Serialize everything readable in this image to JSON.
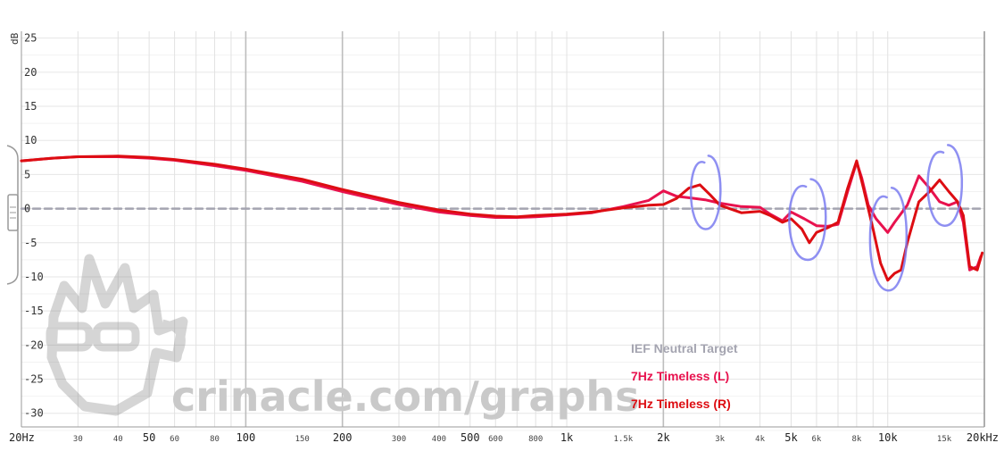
{
  "chart_data": {
    "type": "line",
    "x_scale": "log",
    "xlim": [
      20,
      20000
    ],
    "ylim": [
      -32,
      26
    ],
    "ylabel": "dB",
    "grid": true,
    "legend_position": "bottom-right",
    "y_ticks": [
      25,
      20,
      15,
      10,
      5,
      0,
      -5,
      -10,
      -15,
      -20,
      -25,
      -30
    ],
    "y_tick_labels": [
      "25",
      "20",
      "15",
      "10",
      "5",
      "0",
      "-5",
      "-10",
      "-15",
      "-20",
      "-25",
      "-30"
    ],
    "x_major_ticks": [
      {
        "value": 20,
        "label": "20Hz"
      },
      {
        "value": 50,
        "label": "50"
      },
      {
        "value": 100,
        "label": "100"
      },
      {
        "value": 200,
        "label": "200"
      },
      {
        "value": 500,
        "label": "500"
      },
      {
        "value": 1000,
        "label": "1k"
      },
      {
        "value": 2000,
        "label": "2k"
      },
      {
        "value": 5000,
        "label": "5k"
      },
      {
        "value": 10000,
        "label": "10k"
      },
      {
        "value": 20000,
        "label": "20kHz"
      }
    ],
    "x_minor_ticks": [
      {
        "value": 30,
        "label": "30"
      },
      {
        "value": 40,
        "label": "40"
      },
      {
        "value": 60,
        "label": "60"
      },
      {
        "value": 80,
        "label": "80"
      },
      {
        "value": 150,
        "label": "150"
      },
      {
        "value": 300,
        "label": "300"
      },
      {
        "value": 400,
        "label": "400"
      },
      {
        "value": 600,
        "label": "600"
      },
      {
        "value": 800,
        "label": "800"
      },
      {
        "value": 1500,
        "label": "1.5k"
      },
      {
        "value": 3000,
        "label": "3k"
      },
      {
        "value": 4000,
        "label": "4k"
      },
      {
        "value": 6000,
        "label": "6k"
      },
      {
        "value": 8000,
        "label": "8k"
      },
      {
        "value": 15000,
        "label": "15k"
      }
    ],
    "x_gridlines": [
      20,
      30,
      40,
      50,
      60,
      70,
      80,
      90,
      100,
      200,
      300,
      400,
      500,
      600,
      700,
      800,
      900,
      1000,
      2000,
      3000,
      4000,
      5000,
      6000,
      7000,
      8000,
      9000,
      10000,
      20000
    ],
    "x_heavy_gridlines": [
      100,
      200,
      2000
    ],
    "series": [
      {
        "name": "IEF Neutral Target",
        "color": "#a4a4b0",
        "style": "dashed",
        "points": [
          [
            20,
            0
          ],
          [
            20000,
            0
          ]
        ]
      },
      {
        "name": "7Hz Timeless (L)",
        "color": "#e8124e",
        "style": "solid",
        "points": [
          [
            20,
            7.0
          ],
          [
            25,
            7.4
          ],
          [
            30,
            7.6
          ],
          [
            40,
            7.6
          ],
          [
            50,
            7.4
          ],
          [
            60,
            7.1
          ],
          [
            80,
            6.3
          ],
          [
            100,
            5.6
          ],
          [
            150,
            4.0
          ],
          [
            200,
            2.5
          ],
          [
            300,
            0.6
          ],
          [
            400,
            -0.5
          ],
          [
            500,
            -1.0
          ],
          [
            600,
            -1.3
          ],
          [
            700,
            -1.3
          ],
          [
            800,
            -1.2
          ],
          [
            1000,
            -0.9
          ],
          [
            1200,
            -0.6
          ],
          [
            1500,
            0.3
          ],
          [
            1800,
            1.2
          ],
          [
            2000,
            2.6
          ],
          [
            2200,
            1.8
          ],
          [
            2400,
            1.6
          ],
          [
            2700,
            1.3
          ],
          [
            3000,
            0.8
          ],
          [
            3500,
            0.3
          ],
          [
            4000,
            0.2
          ],
          [
            4300,
            -0.8
          ],
          [
            4700,
            -1.8
          ],
          [
            5000,
            -0.5
          ],
          [
            5500,
            -1.5
          ],
          [
            6000,
            -2.5
          ],
          [
            6500,
            -2.6
          ],
          [
            7000,
            -2.3
          ],
          [
            7500,
            2.5
          ],
          [
            8000,
            6.8
          ],
          [
            8300,
            4.5
          ],
          [
            8700,
            0.5
          ],
          [
            9200,
            -1.5
          ],
          [
            10000,
            -3.5
          ],
          [
            10500,
            -2.0
          ],
          [
            11500,
            0.5
          ],
          [
            12500,
            4.8
          ],
          [
            13500,
            3.0
          ],
          [
            14500,
            1.0
          ],
          [
            15500,
            0.5
          ],
          [
            16500,
            1.0
          ],
          [
            17200,
            -2.0
          ],
          [
            18000,
            -9.0
          ],
          [
            19000,
            -8.5
          ],
          [
            19500,
            -7.0
          ]
        ]
      },
      {
        "name": "7Hz Timeless (R)",
        "color": "#dd0d12",
        "style": "solid",
        "points": [
          [
            20,
            7.0
          ],
          [
            25,
            7.4
          ],
          [
            30,
            7.6
          ],
          [
            40,
            7.7
          ],
          [
            50,
            7.5
          ],
          [
            60,
            7.2
          ],
          [
            80,
            6.5
          ],
          [
            100,
            5.8
          ],
          [
            150,
            4.3
          ],
          [
            200,
            2.8
          ],
          [
            300,
            0.9
          ],
          [
            400,
            -0.2
          ],
          [
            500,
            -0.8
          ],
          [
            600,
            -1.1
          ],
          [
            700,
            -1.2
          ],
          [
            800,
            -1.0
          ],
          [
            1000,
            -0.8
          ],
          [
            1200,
            -0.5
          ],
          [
            1500,
            0.1
          ],
          [
            1800,
            0.5
          ],
          [
            2000,
            0.6
          ],
          [
            2200,
            1.5
          ],
          [
            2400,
            3.0
          ],
          [
            2600,
            3.5
          ],
          [
            2800,
            2.0
          ],
          [
            3000,
            0.5
          ],
          [
            3500,
            -0.6
          ],
          [
            4000,
            -0.4
          ],
          [
            4300,
            -1.0
          ],
          [
            4700,
            -2.0
          ],
          [
            5000,
            -1.5
          ],
          [
            5400,
            -3.0
          ],
          [
            5700,
            -5.0
          ],
          [
            6000,
            -3.5
          ],
          [
            6500,
            -2.8
          ],
          [
            7000,
            -2.0
          ],
          [
            7500,
            3.0
          ],
          [
            8000,
            7.0
          ],
          [
            8400,
            3.0
          ],
          [
            9000,
            -3.0
          ],
          [
            9500,
            -8.0
          ],
          [
            10000,
            -10.5
          ],
          [
            10500,
            -9.5
          ],
          [
            11000,
            -9.0
          ],
          [
            11500,
            -5.0
          ],
          [
            12500,
            1.0
          ],
          [
            13500,
            2.5
          ],
          [
            14500,
            4.2
          ],
          [
            15500,
            2.5
          ],
          [
            16500,
            1.0
          ],
          [
            17200,
            -1.0
          ],
          [
            18000,
            -8.5
          ],
          [
            19000,
            -9.0
          ],
          [
            19700,
            -6.5
          ]
        ]
      }
    ],
    "annotations": [
      {
        "type": "circle",
        "color": "#7b7cf0",
        "x_center": 2700,
        "y_center": 2.0,
        "x_rx_factor": 1.12,
        "y_radius": 5.0
      },
      {
        "type": "circle",
        "color": "#7b7cf0",
        "x_center": 5600,
        "y_center": -2.0,
        "x_rx_factor": 1.15,
        "y_radius": 5.5
      },
      {
        "type": "circle",
        "color": "#7b7cf0",
        "x_center": 10000,
        "y_center": -5.0,
        "x_rx_factor": 1.15,
        "y_radius": 7.0
      },
      {
        "type": "circle",
        "color": "#7b7cf0",
        "x_center": 15000,
        "y_center": 3.0,
        "x_rx_factor": 1.14,
        "y_radius": 5.5
      }
    ]
  },
  "watermark": {
    "text": "crinacle.com/graphs"
  }
}
